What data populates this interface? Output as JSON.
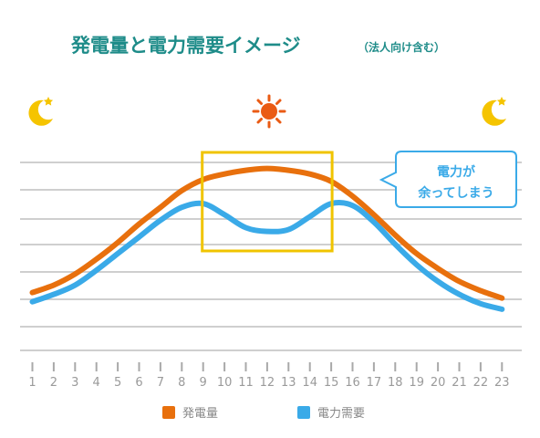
{
  "chart_data": {
    "type": "line",
    "title": "発電量と電力需要イメージ",
    "subtitle": "（法人向け含む）",
    "x": [
      1,
      2,
      3,
      4,
      5,
      6,
      7,
      8,
      9,
      10,
      11,
      12,
      13,
      14,
      15,
      16,
      17,
      18,
      19,
      20,
      21,
      22,
      23
    ],
    "series": [
      {
        "name": "発電量",
        "color": "#e8700d",
        "values": [
          14,
          18,
          24,
          32,
          41,
          51,
          60,
          69,
          75,
          78,
          80,
          81,
          80,
          78,
          74,
          66,
          56,
          45,
          35,
          27,
          20,
          15,
          11
        ]
      },
      {
        "name": "電力需要",
        "color": "#3aaae8",
        "values": [
          9,
          13,
          18,
          26,
          35,
          44,
          53,
          60,
          62,
          56,
          49,
          47,
          48,
          55,
          62,
          61,
          52,
          40,
          29,
          20,
          13,
          8,
          5
        ]
      }
    ],
    "annotation": {
      "line1": "電力が",
      "line2": "余ってしまう"
    },
    "highlight": {
      "x_range": [
        9,
        15
      ],
      "color": "#f0c400"
    },
    "icons": {
      "left": "moon-icon",
      "center": "sun-icon",
      "right": "moon-icon"
    },
    "colors": {
      "title": "#1e8c89",
      "grid": "#cfcfcf",
      "moon": "#f5c400",
      "sun": "#ea5b14",
      "callout_border": "#3aaae8"
    },
    "grid": true,
    "legend_position": "bottom"
  }
}
